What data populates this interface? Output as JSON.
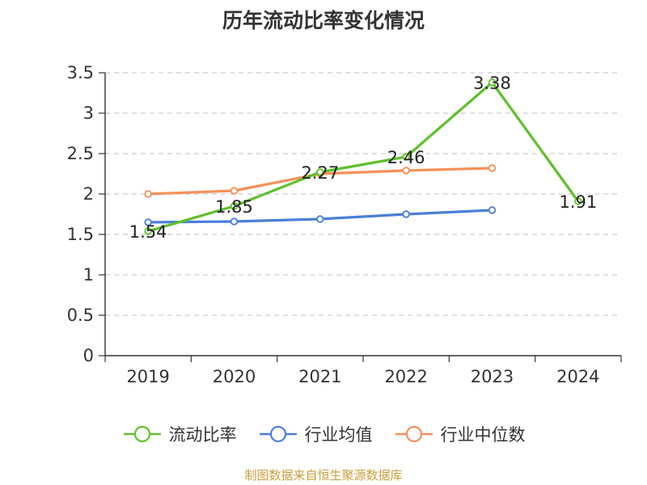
{
  "chart_data": {
    "type": "line",
    "title": "历年流动比率变化情况",
    "categories": [
      "2019",
      "2020",
      "2021",
      "2022",
      "2023",
      "2024"
    ],
    "ylim": [
      0,
      3.5
    ],
    "yticks": [
      "0",
      "0.5",
      "1",
      "1.5",
      "2",
      "2.5",
      "3",
      "3.5"
    ],
    "grid": true,
    "legend_position": "bottom",
    "series": [
      {
        "name": "流动比率",
        "color": "#5ec12a",
        "values": [
          1.54,
          1.85,
          2.27,
          2.46,
          3.38,
          1.91
        ],
        "labels": [
          "1.54",
          "1.85",
          "2.27",
          "2.46",
          "3.38",
          "1.91"
        ]
      },
      {
        "name": "行业均值",
        "color": "#4a7fd8",
        "values": [
          1.65,
          1.66,
          1.69,
          1.75,
          1.8,
          null
        ]
      },
      {
        "name": "行业中位数",
        "color": "#f59058",
        "values": [
          2.0,
          2.04,
          2.25,
          2.29,
          2.32,
          null
        ]
      }
    ],
    "source": "制图数据来自恒生聚源数据库"
  }
}
